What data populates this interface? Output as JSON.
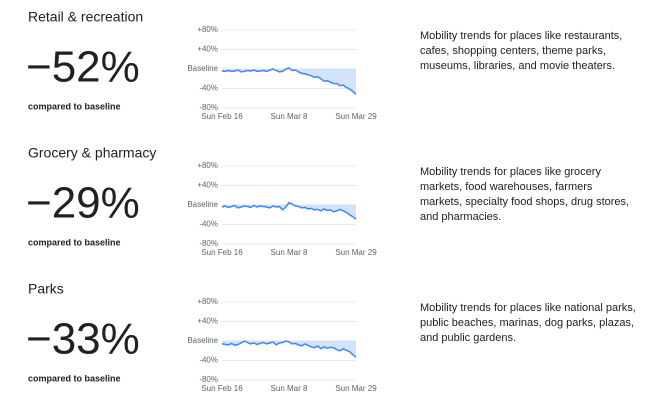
{
  "chart_data": [
    {
      "type": "line",
      "title": "Retail & recreation",
      "headline": "−52%",
      "caption": "compared to baseline",
      "description": [
        "Mobility trends for places like restaurants,",
        "cafes, shopping centers, theme parks,",
        "museums, libraries, and movie theaters."
      ],
      "categories": [
        "Sun Feb 16",
        null,
        null,
        null,
        null,
        null,
        null,
        null,
        null,
        null,
        null,
        null,
        null,
        null,
        null,
        null,
        null,
        null,
        null,
        null,
        null,
        "Sun Mar 8",
        null,
        null,
        null,
        null,
        null,
        null,
        null,
        null,
        null,
        null,
        null,
        null,
        null,
        null,
        null,
        null,
        null,
        null,
        null,
        null,
        "Sun Mar 29"
      ],
      "values": [
        -4,
        -5,
        -3,
        -5,
        -4,
        -2,
        -6,
        -5,
        -3,
        -4,
        -2,
        -5,
        -4,
        -3,
        -5,
        -2,
        0,
        -3,
        -6,
        -5,
        0,
        2,
        -3,
        -2,
        -6,
        -9,
        -10,
        -12,
        -14,
        -17,
        -16,
        -20,
        -25,
        -24,
        -27,
        -30,
        -30,
        -34,
        -33,
        -38,
        -41,
        -46,
        -52
      ],
      "color": "#4285f4",
      "area_color": "#d2e3fc",
      "grid": true,
      "ylim": [
        -80,
        80
      ],
      "yticks": [
        {
          "value": 80,
          "label": "+80%"
        },
        {
          "value": 40,
          "label": "+40%"
        },
        {
          "value": 0,
          "label": "Baseline"
        },
        {
          "value": -40,
          "label": "-40%"
        },
        {
          "value": -80,
          "label": "-80%"
        }
      ]
    },
    {
      "type": "line",
      "title": "Grocery & pharmacy",
      "headline": "−29%",
      "caption": "compared to baseline",
      "description": [
        "Mobility trends for places like grocery",
        "markets, food warehouses, farmers",
        "markets, specialty food shops, drug stores,",
        "and pharmacies."
      ],
      "categories": [
        "Sun Feb 16",
        null,
        null,
        null,
        null,
        null,
        null,
        null,
        null,
        null,
        null,
        null,
        null,
        null,
        null,
        null,
        null,
        null,
        null,
        null,
        null,
        "Sun Mar 8",
        null,
        null,
        null,
        null,
        null,
        null,
        null,
        null,
        null,
        null,
        null,
        null,
        null,
        null,
        null,
        null,
        null,
        null,
        null,
        null,
        "Sun Mar 29"
      ],
      "values": [
        -4,
        -2,
        -5,
        -3,
        -1,
        -6,
        -4,
        -2,
        -3,
        -5,
        -1,
        -4,
        -2,
        -3,
        -4,
        -6,
        -2,
        -4,
        -3,
        -10,
        -4,
        5,
        2,
        -2,
        -3,
        -6,
        -5,
        -8,
        -7,
        -10,
        -9,
        -12,
        -8,
        -11,
        -10,
        -14,
        -12,
        -9,
        -12,
        -15,
        -20,
        -24,
        -29
      ],
      "color": "#4285f4",
      "area_color": "#d2e3fc",
      "grid": true,
      "ylim": [
        -80,
        80
      ],
      "yticks": [
        {
          "value": 80,
          "label": "+80%"
        },
        {
          "value": 40,
          "label": "+40%"
        },
        {
          "value": 0,
          "label": "Baseline"
        },
        {
          "value": -40,
          "label": "-40%"
        },
        {
          "value": -80,
          "label": "-80%"
        }
      ]
    },
    {
      "type": "line",
      "title": "Parks",
      "headline": "−33%",
      "caption": "compared to baseline",
      "description": [
        "Mobility trends for places like national parks,",
        "public beaches, marinas, dog parks, plazas,",
        "and public gardens."
      ],
      "categories": [
        "Sun Feb 16",
        null,
        null,
        null,
        null,
        null,
        null,
        null,
        null,
        null,
        null,
        null,
        null,
        null,
        null,
        null,
        null,
        null,
        null,
        null,
        null,
        "Sun Mar 8",
        null,
        null,
        null,
        null,
        null,
        null,
        null,
        null,
        null,
        null,
        null,
        null,
        null,
        null,
        null,
        null,
        null,
        null,
        null,
        null,
        "Sun Mar 29"
      ],
      "values": [
        -6,
        -7,
        -8,
        -5,
        -9,
        -7,
        -4,
        0,
        -3,
        -6,
        -4,
        -7,
        -5,
        -3,
        -6,
        -4,
        -2,
        -8,
        -4,
        -3,
        0,
        -2,
        -6,
        -5,
        -8,
        -10,
        -6,
        -9,
        -12,
        -14,
        -10,
        -16,
        -12,
        -15,
        -13,
        -14,
        -18,
        -20,
        -16,
        -19,
        -22,
        -28,
        -33
      ],
      "color": "#4285f4",
      "area_color": "#d2e3fc",
      "grid": true,
      "ylim": [
        -80,
        80
      ],
      "yticks": [
        {
          "value": 80,
          "label": "+80%"
        },
        {
          "value": 40,
          "label": "+40%"
        },
        {
          "value": 0,
          "label": "Baseline"
        },
        {
          "value": -40,
          "label": "-40%"
        },
        {
          "value": -80,
          "label": "-80%"
        }
      ]
    }
  ]
}
